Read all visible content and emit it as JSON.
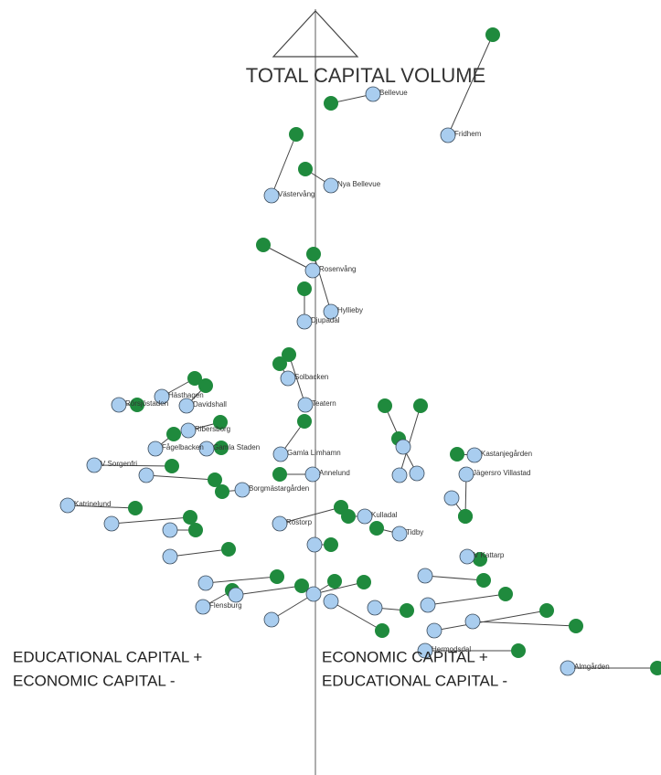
{
  "chart_data": {
    "type": "scatter",
    "title": "TOTAL CAPITAL VOLUME",
    "annotations": [
      "EDUCATIONAL CAPITAL +",
      "ECONOMIC CAPITAL -",
      "ECONOMIC CAPITAL +",
      "EDUCATIONAL CAPITAL -"
    ],
    "xlim": [
      -3.45,
      3.78
    ],
    "ylim": [
      -1.08,
      7.4
    ],
    "point_color": "#a9cdef",
    "pair_color": "#1f8a3d",
    "points": [
      {
        "label": "Bellevue",
        "x": 0.63,
        "y": 6.37,
        "x2": 0.17,
        "y2": 6.27
      },
      {
        "label": "Fridhem",
        "x": 1.45,
        "y": 5.92,
        "x2": 1.94,
        "y2": 7.02
      },
      {
        "label": "Nya Bellevue",
        "x": 0.17,
        "y": 5.37,
        "x2": -0.11,
        "y2": 5.55
      },
      {
        "label": "Västervång",
        "x": -0.48,
        "y": 5.26,
        "x2": -0.21,
        "y2": 5.93
      },
      {
        "label": "Rosenvång",
        "x": -0.03,
        "y": 4.44,
        "x2": -0.57,
        "y2": 4.72
      },
      {
        "label": "Hyllieby",
        "x": 0.17,
        "y": 3.99,
        "x2": -0.02,
        "y2": 4.62
      },
      {
        "label": "Djupadal",
        "x": -0.12,
        "y": 3.88,
        "x2": -0.12,
        "y2": 4.24
      },
      {
        "label": "Solbacken",
        "x": -0.3,
        "y": 3.26,
        "x2": -0.39,
        "y2": 3.42
      },
      {
        "label": "Teatern",
        "x": -0.11,
        "y": 2.97,
        "x2": -0.29,
        "y2": 3.52
      },
      {
        "label": "Hästhagen",
        "x": -1.68,
        "y": 3.06,
        "x2": -1.32,
        "y2": 3.26
      },
      {
        "label": "Davidshall",
        "x": -1.41,
        "y": 2.96,
        "x2": -1.2,
        "y2": 3.18
      },
      {
        "label": "Rörsjöstaden",
        "x": -2.15,
        "y": 2.97,
        "x2": -1.95,
        "y2": 2.97
      },
      {
        "label": "Ribersborg",
        "x": -1.39,
        "y": 2.69,
        "x2": -1.04,
        "y2": 2.78
      },
      {
        "label": "Gamla Staden",
        "x": -1.19,
        "y": 2.49,
        "x2": -1.03,
        "y2": 2.5
      },
      {
        "label": "Fågelbacken",
        "x": -1.75,
        "y": 2.49,
        "x2": -1.55,
        "y2": 2.65
      },
      {
        "label": "V Sorgenfri",
        "x": -2.42,
        "y": 2.31,
        "x2": -1.57,
        "y2": 2.3
      },
      {
        "label": "Katrinelund",
        "x": -2.71,
        "y": 1.87,
        "x2": -1.97,
        "y2": 1.84
      },
      {
        "label": "Gamla Limhamn",
        "x": -0.38,
        "y": 2.43,
        "x2": -0.12,
        "y2": 2.79
      },
      {
        "label": "Annelund",
        "x": -0.03,
        "y": 2.21,
        "x2": -0.39,
        "y2": 2.21
      },
      {
        "label": "Borgmästargården",
        "x": -0.8,
        "y": 2.04,
        "x2": -1.02,
        "y2": 2.02
      },
      {
        "label": "Rostorp",
        "x": -0.39,
        "y": 1.67,
        "x2": 0.28,
        "y2": 1.85
      },
      {
        "label": "Kulladal",
        "x": 0.54,
        "y": 1.75,
        "x2": 0.36,
        "y2": 1.75
      },
      {
        "label": "Tidby",
        "x": 0.92,
        "y": 1.56,
        "x2": 0.67,
        "y2": 1.62
      },
      {
        "label": "V Kattarp",
        "x": 1.66,
        "y": 1.31,
        "x2": 1.8,
        "y2": 1.28
      },
      {
        "label": "Kastanjegården",
        "x": 1.74,
        "y": 2.42,
        "x2": 1.55,
        "y2": 2.43
      },
      {
        "label": "Jägersro Villastad",
        "x": 1.65,
        "y": 2.21,
        "x2": 1.64,
        "y2": 1.75
      },
      {
        "label": "Flensburg",
        "x": -1.23,
        "y": 0.76,
        "x2": -0.91,
        "y2": 0.94
      },
      {
        "label": "Almgården",
        "x": 2.76,
        "y": 0.09,
        "x2": 3.74,
        "y2": 0.09
      },
      {
        "label": "Hermodsdal",
        "x": 1.2,
        "y": 0.28,
        "x2": 2.22,
        "y2": 0.28
      },
      {
        "label": null,
        "x": -2.23,
        "y": 1.67,
        "x2": -1.37,
        "y2": 1.74
      },
      {
        "label": null,
        "x": -1.59,
        "y": 1.31,
        "x2": -0.95,
        "y2": 1.39
      },
      {
        "label": null,
        "x": -1.2,
        "y": 1.02,
        "x2": -0.42,
        "y2": 1.09
      },
      {
        "label": null,
        "x": -0.87,
        "y": 0.89,
        "x2": -0.15,
        "y2": 0.99
      },
      {
        "label": null,
        "x": -0.48,
        "y": 0.62,
        "x2": 0.21,
        "y2": 1.04
      },
      {
        "label": null,
        "x": -0.02,
        "y": 0.9,
        "x2": 0.53,
        "y2": 1.03
      },
      {
        "label": null,
        "x": 0.17,
        "y": 0.82,
        "x2": 0.73,
        "y2": 0.5
      },
      {
        "label": null,
        "x": 0.65,
        "y": 0.75,
        "x2": 1.0,
        "y2": 0.72
      },
      {
        "label": null,
        "x": 1.2,
        "y": 1.1,
        "x2": 1.84,
        "y2": 1.05
      },
      {
        "label": null,
        "x": 1.23,
        "y": 0.78,
        "x2": 2.08,
        "y2": 0.9
      },
      {
        "label": null,
        "x": 1.3,
        "y": 0.5,
        "x2": 2.53,
        "y2": 0.72
      },
      {
        "label": null,
        "x": 1.72,
        "y": 0.6,
        "x2": 2.85,
        "y2": 0.55
      },
      {
        "label": null,
        "x": 0.96,
        "y": 2.51,
        "x2": 0.76,
        "y2": 2.96
      },
      {
        "label": null,
        "x": 0.92,
        "y": 2.2,
        "x2": 1.15,
        "y2": 2.96
      },
      {
        "label": null,
        "x": 1.11,
        "y": 2.22,
        "x2": 0.91,
        "y2": 2.6
      },
      {
        "label": null,
        "x": -1.59,
        "y": 1.6,
        "x2": -1.31,
        "y2": 1.6
      },
      {
        "label": null,
        "x": -1.85,
        "y": 2.2,
        "x2": -1.1,
        "y2": 2.15
      },
      {
        "label": null,
        "x": -0.01,
        "y": 1.44,
        "x2": 0.17,
        "y2": 1.44
      },
      {
        "label": null,
        "x": 1.49,
        "y": 1.95,
        "x2": 1.64,
        "y2": 1.75
      }
    ]
  }
}
